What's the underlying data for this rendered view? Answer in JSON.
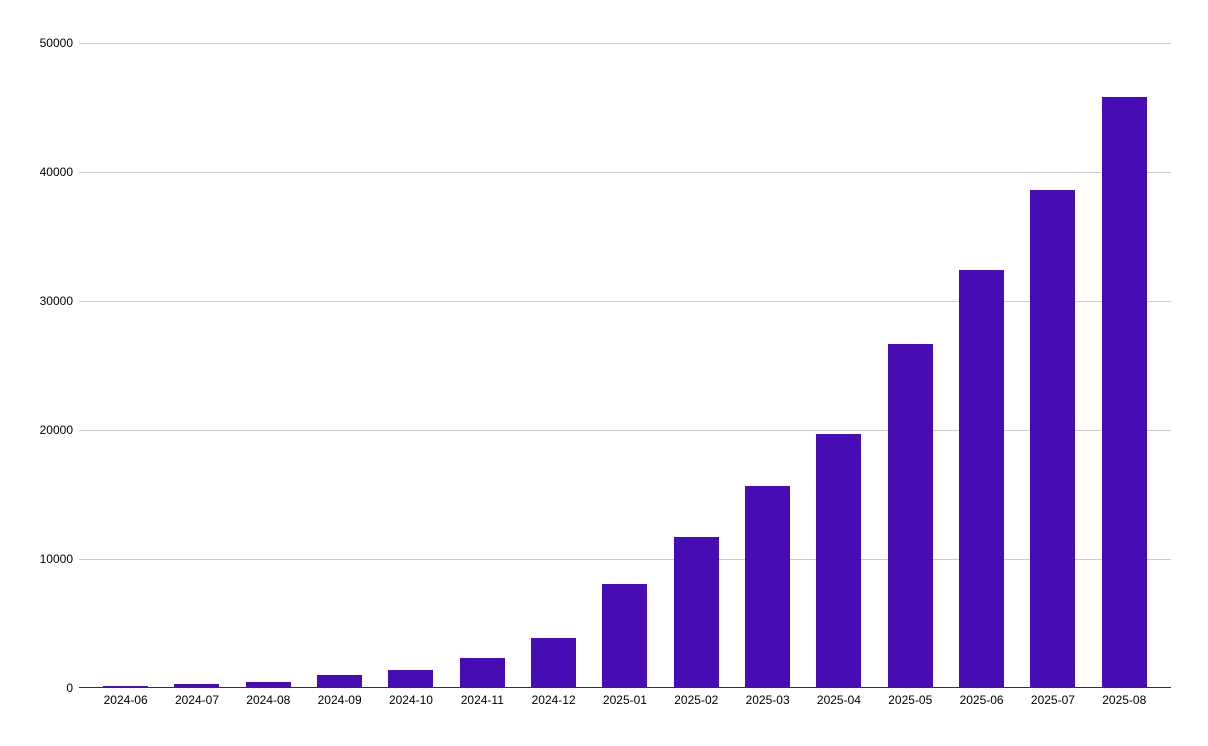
{
  "chart_data": {
    "type": "bar",
    "title": "",
    "xlabel": "",
    "ylabel": "",
    "categories": [
      "2024-06",
      "2024-07",
      "2024-08",
      "2024-09",
      "2024-10",
      "2024-11",
      "2024-12",
      "2025-01",
      "2025-02",
      "2025-03",
      "2025-04",
      "2025-05",
      "2025-06",
      "2025-07",
      "2025-08"
    ],
    "values": [
      60,
      200,
      400,
      900,
      1300,
      2250,
      3800,
      8000,
      11650,
      15550,
      19650,
      26600,
      32350,
      38550,
      45700
    ],
    "ylim": [
      0,
      50000
    ],
    "yticks": [
      0,
      10000,
      20000,
      30000,
      40000,
      50000
    ],
    "ytick_labels": [
      "0",
      "10000",
      "20000",
      "30000",
      "40000",
      "50000"
    ],
    "grid": true,
    "legend_position": "none",
    "colors": {
      "bar": "#480cb4",
      "gridline": "#cccccc",
      "axis_line": "#333333",
      "tick_label": "#000000",
      "background": "#ffffff"
    }
  }
}
